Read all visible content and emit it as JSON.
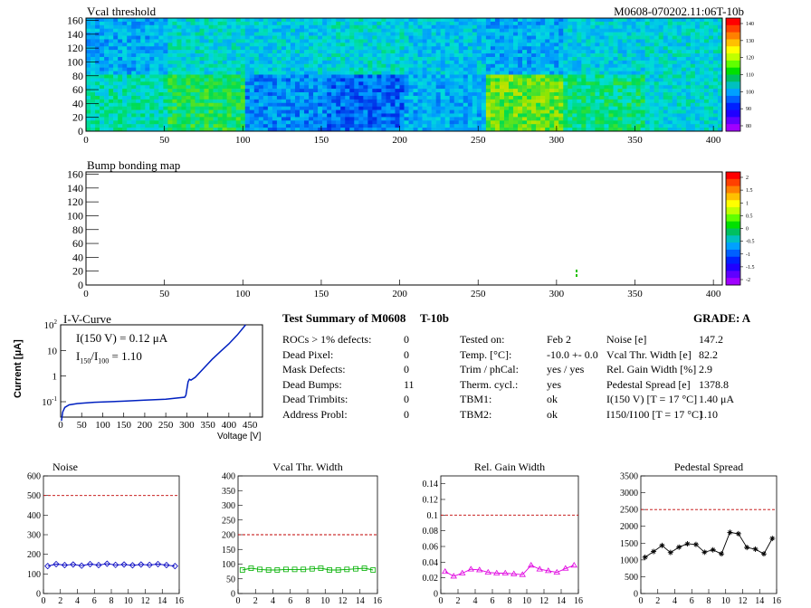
{
  "colors": {
    "frame": "#000000",
    "iv_line": "#0020c0",
    "limit_line": "#c00000",
    "noise_series": "#0000c0",
    "vcal_width_series": "#00b000",
    "gain_series": "#e000e0",
    "pedestal_series": "#000000",
    "bg": "#ffffff"
  },
  "map1": {
    "title": "Vcal threshold",
    "id": "M0608-070202.11:06T-10b",
    "yticks": [
      "0",
      "20",
      "40",
      "60",
      "80",
      "100",
      "120",
      "140",
      "160"
    ],
    "xticks": [
      "0",
      "50",
      "100",
      "150",
      "200",
      "250",
      "300",
      "350",
      "400"
    ],
    "palette_ticks": [
      "140",
      "130",
      "120",
      "110",
      "100",
      "90",
      "80"
    ]
  },
  "map2": {
    "title": "Bump bonding map",
    "yticks": [
      "0",
      "20",
      "40",
      "60",
      "80",
      "100",
      "120",
      "140",
      "160"
    ],
    "xticks": [
      "0",
      "50",
      "100",
      "150",
      "200",
      "250",
      "300",
      "350",
      "400"
    ],
    "palette_ticks": [
      "2",
      "1.5",
      "1",
      "0.5",
      "0",
      "-0.5",
      "-1",
      "-1.5",
      "-2"
    ]
  },
  "iv": {
    "title": "I-V-Curve",
    "ylabel": "Current [μA]",
    "xlabel": "Voltage [V]",
    "ann1": "I(150 V) = 0.12 μA",
    "ann2_a": "I",
    "ann2_sub1": "150",
    "ann2_b": "/I",
    "ann2_sub2": "100",
    "ann2_c": " =  1.10",
    "ytick_base": "10",
    "ytick_exps": [
      "-1",
      "",
      "",
      "2"
    ],
    "xticks": [
      "0",
      "50",
      "100",
      "150",
      "200",
      "250",
      "300",
      "350",
      "400",
      "450"
    ]
  },
  "summary": {
    "title": "Test Summary of M0608",
    "tag": "T-10b",
    "grade": "GRADE:  A",
    "left": [
      {
        "label": "ROCs > 1% defects:",
        "value": "0"
      },
      {
        "label": "Dead Pixel:",
        "value": "0"
      },
      {
        "label": "Mask Defects:",
        "value": "0"
      },
      {
        "label": "Dead Bumps:",
        "value": "11"
      },
      {
        "label": "Dead Trimbits:",
        "value": "0"
      },
      {
        "label": "Address Probl:",
        "value": "0"
      }
    ],
    "mid": [
      {
        "label": "Tested on:",
        "value": "Feb 2"
      },
      {
        "label": "Temp. [°C]:",
        "value": "-10.0 +- 0.0"
      },
      {
        "label": "Trim / phCal:",
        "value": "yes / yes"
      },
      {
        "label": "Therm. cycl.:",
        "value": "yes"
      },
      {
        "label": "TBM1:",
        "value": "ok"
      },
      {
        "label": "TBM2:",
        "value": "ok"
      }
    ],
    "right": [
      {
        "label": "Noise [e]",
        "value": "147.2"
      },
      {
        "label": "Vcal Thr. Width [e]",
        "value": "82.2"
      },
      {
        "label": "Rel. Gain Width [%]",
        "value": "2.9"
      },
      {
        "label": "Pedestal Spread [e]",
        "value": "1378.8"
      },
      {
        "label": "I(150 V) [T = 17 °C]",
        "value": "1.40 μA"
      },
      {
        "label": "I150/I100 [T = 17 °C]",
        "value": "1.10"
      }
    ]
  },
  "chart_data": [
    {
      "type": "line",
      "title": "Noise",
      "x": [
        0,
        1,
        2,
        3,
        4,
        5,
        6,
        7,
        8,
        9,
        10,
        11,
        12,
        13,
        14,
        15
      ],
      "values": [
        140,
        150,
        145,
        148,
        142,
        150,
        145,
        152,
        146,
        148,
        144,
        148,
        146,
        150,
        145,
        140
      ],
      "limit": 500,
      "ylim": [
        0,
        600
      ],
      "yticks": [
        "0",
        "100",
        "200",
        "300",
        "400",
        "500",
        "600"
      ],
      "xlim": [
        0,
        16
      ],
      "xticks": [
        "0",
        "2",
        "4",
        "6",
        "8",
        "10",
        "12",
        "14",
        "16"
      ],
      "marker": "diamond"
    },
    {
      "type": "line",
      "title": "Vcal Thr. Width",
      "x": [
        0,
        1,
        2,
        3,
        4,
        5,
        6,
        7,
        8,
        9,
        10,
        11,
        12,
        13,
        14,
        15
      ],
      "values": [
        80,
        86,
        82,
        80,
        80,
        82,
        82,
        82,
        84,
        86,
        80,
        80,
        82,
        84,
        86,
        80
      ],
      "limit": 200,
      "ylim": [
        0,
        400
      ],
      "yticks": [
        "0",
        "50",
        "100",
        "150",
        "200",
        "250",
        "300",
        "350",
        "400"
      ],
      "xlim": [
        0,
        16
      ],
      "xticks": [
        "0",
        "2",
        "4",
        "6",
        "8",
        "10",
        "12",
        "14",
        "16"
      ],
      "marker": "square"
    },
    {
      "type": "line",
      "title": "Rel. Gain Width",
      "x": [
        0,
        1,
        2,
        3,
        4,
        5,
        6,
        7,
        8,
        9,
        10,
        11,
        12,
        13,
        14,
        15
      ],
      "values": [
        0.028,
        0.022,
        0.026,
        0.031,
        0.03,
        0.027,
        0.026,
        0.026,
        0.025,
        0.024,
        0.036,
        0.031,
        0.029,
        0.027,
        0.032,
        0.036
      ],
      "limit": 0.1,
      "ylim": [
        0,
        0.15
      ],
      "yticks": [
        "0",
        "0.02",
        "0.04",
        "0.06",
        "0.08",
        "0.1",
        "0.12",
        "0.14"
      ],
      "xlim": [
        0,
        16
      ],
      "xticks": [
        "0",
        "2",
        "4",
        "6",
        "8",
        "10",
        "12",
        "14",
        "16"
      ],
      "marker": "triangle"
    },
    {
      "type": "line",
      "title": "Pedestal Spread",
      "x": [
        0,
        1,
        2,
        3,
        4,
        5,
        6,
        7,
        8,
        9,
        10,
        11,
        12,
        13,
        14,
        15
      ],
      "values": [
        1080,
        1250,
        1430,
        1220,
        1380,
        1480,
        1460,
        1230,
        1300,
        1180,
        1820,
        1780,
        1370,
        1320,
        1180,
        1640
      ],
      "limit": 2500,
      "ylim": [
        0,
        3500
      ],
      "yticks": [
        "0",
        "500",
        "1000",
        "1500",
        "2000",
        "2500",
        "3000",
        "3500"
      ],
      "xlim": [
        0,
        16
      ],
      "xticks": [
        "0",
        "2",
        "4",
        "6",
        "8",
        "10",
        "12",
        "14",
        "16"
      ],
      "marker": "star"
    }
  ]
}
